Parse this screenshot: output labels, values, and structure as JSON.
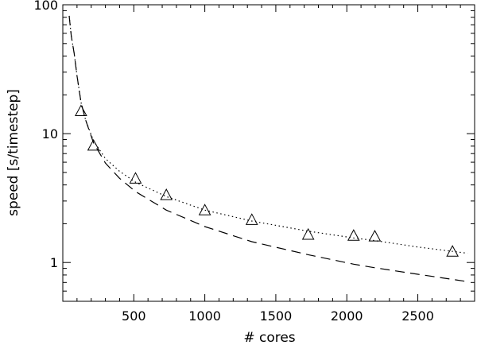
{
  "chart_data": {
    "type": "scatter",
    "xlabel": "# cores",
    "ylabel": "speed [s/timestep]",
    "xlim": [
      0,
      2900
    ],
    "ylim": [
      0.5,
      100
    ],
    "yscale": "log",
    "xticks": [
      500,
      1000,
      1500,
      2000,
      2500
    ],
    "xtick_labels": [
      "500",
      "1000",
      "1500",
      "2000",
      "2500"
    ],
    "yticks": [
      1,
      10,
      100
    ],
    "ytick_labels": [
      "1",
      "10",
      "100"
    ],
    "legend": "none",
    "grid": false,
    "series": [
      {
        "kind": "markers",
        "marker": "open-triangle",
        "x": [
          128,
          216,
          512,
          729,
          1000,
          1331,
          1728,
          2048,
          2197,
          2744
        ],
        "y": [
          15,
          8.1,
          4.5,
          3.35,
          2.55,
          2.15,
          1.65,
          1.62,
          1.6,
          1.22
        ]
      },
      {
        "kind": "line",
        "style": "dotted",
        "x": [
          45,
          60,
          80,
          100,
          128,
          160,
          216,
          300,
          400,
          512,
          729,
          1000,
          1331,
          1728,
          2048,
          2197,
          2500,
          2744,
          2850
        ],
        "y": [
          82,
          57,
          42,
          28,
          17.5,
          12.8,
          8.8,
          6.4,
          5.1,
          4.2,
          3.25,
          2.55,
          2.1,
          1.75,
          1.55,
          1.48,
          1.32,
          1.22,
          1.18
        ]
      },
      {
        "kind": "line",
        "style": "dashed",
        "x": [
          45,
          60,
          80,
          100,
          128,
          160,
          216,
          300,
          400,
          512,
          729,
          1000,
          1331,
          1728,
          2048,
          2197,
          2500,
          2744,
          2850
        ],
        "y": [
          82,
          57,
          42,
          28,
          17.5,
          12.8,
          8.5,
          5.9,
          4.5,
          3.55,
          2.55,
          1.9,
          1.45,
          1.15,
          0.97,
          0.91,
          0.81,
          0.74,
          0.71
        ]
      }
    ]
  }
}
